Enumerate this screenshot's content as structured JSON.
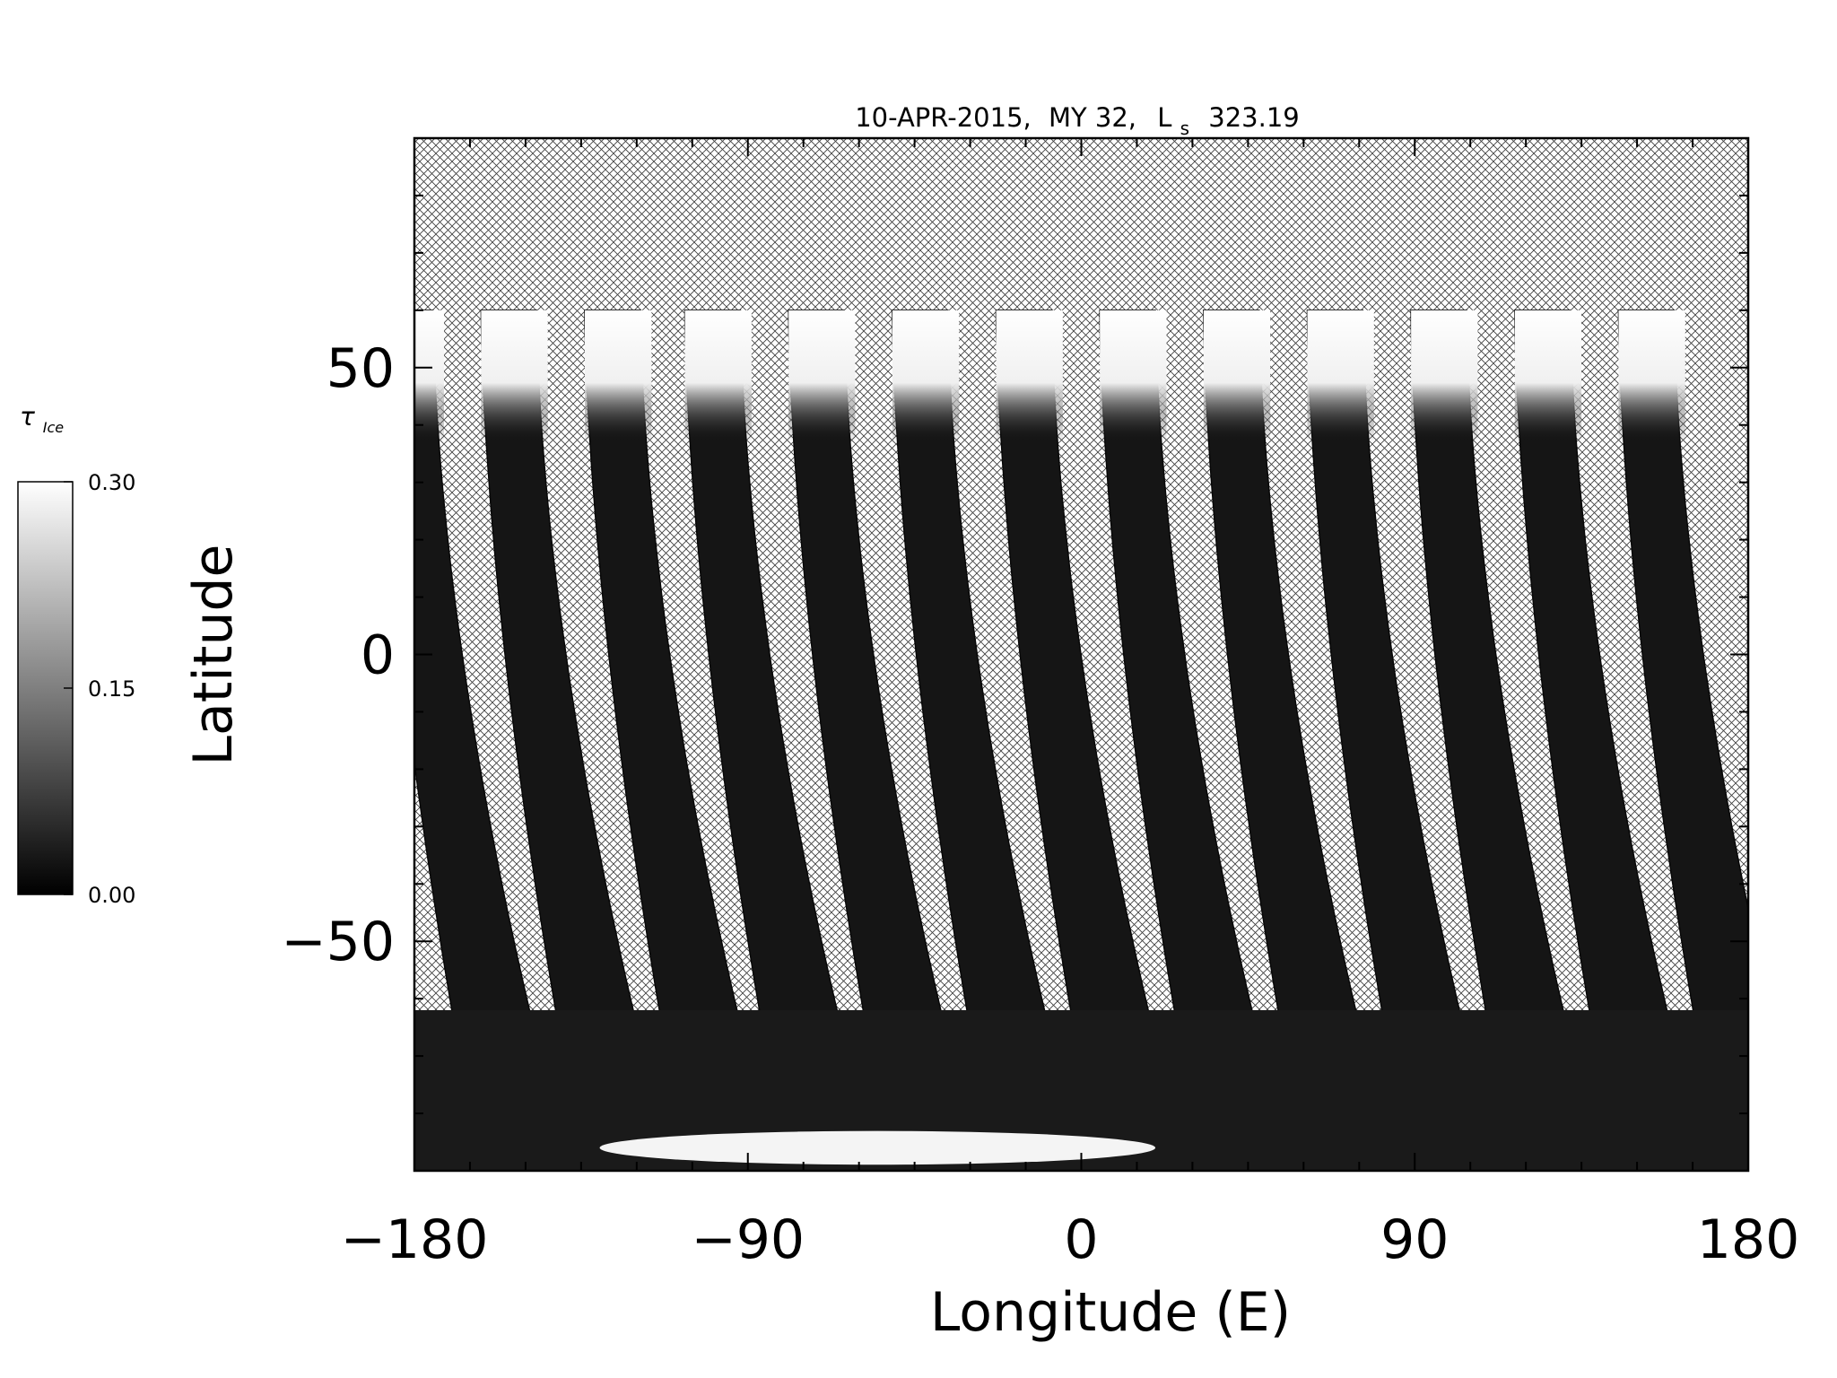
{
  "chart_data": {
    "type": "heatmap",
    "title": {
      "date": "10-APR-2015,",
      "mars_year": "MY 32,",
      "ls_symbol": "L",
      "ls_subscript": "s",
      "ls_value": "323.19"
    },
    "xlabel": "Longitude (E)",
    "ylabel": "Latitude",
    "xlim": [
      -180,
      180
    ],
    "ylim": [
      -90,
      90
    ],
    "x_ticks": [
      -180,
      -90,
      0,
      90,
      180
    ],
    "x_tick_labels": [
      "−180",
      "−90",
      "0",
      "90",
      "180"
    ],
    "y_ticks": [
      -50,
      0,
      50
    ],
    "y_tick_labels": [
      "−50",
      "0",
      "50"
    ],
    "colorbar": {
      "label_symbol": "τ",
      "label_subscript": "Ice",
      "min": 0.0,
      "max": 0.3,
      "ticks": [
        0.0,
        0.15,
        0.3
      ],
      "tick_labels": [
        "0.00",
        "0.15",
        "0.30"
      ],
      "colormap": "grayscale",
      "min_color": "#000000",
      "max_color": "#ffffff"
    },
    "no_data_fill": "crosshatch",
    "orbit_swaths": {
      "count": 13,
      "start_longitude_at_north_edge": [
        -180,
        -152,
        -124,
        -97,
        -69,
        -41,
        -13,
        15,
        43,
        71,
        99,
        127,
        155
      ],
      "swath_width_deg": 15,
      "northern_data_limit_lat": 60,
      "southern_data_limit_lat": -90
    },
    "features": {
      "north_band": {
        "lat_min": 45,
        "lat_max": 60,
        "tau_ice": 0.3
      },
      "south_cap": {
        "lon_min": -130,
        "lon_max": 20,
        "lat_min": -88,
        "lat_max": -84,
        "tau_ice": 0.3
      },
      "background_tau_ice": 0.02
    }
  }
}
